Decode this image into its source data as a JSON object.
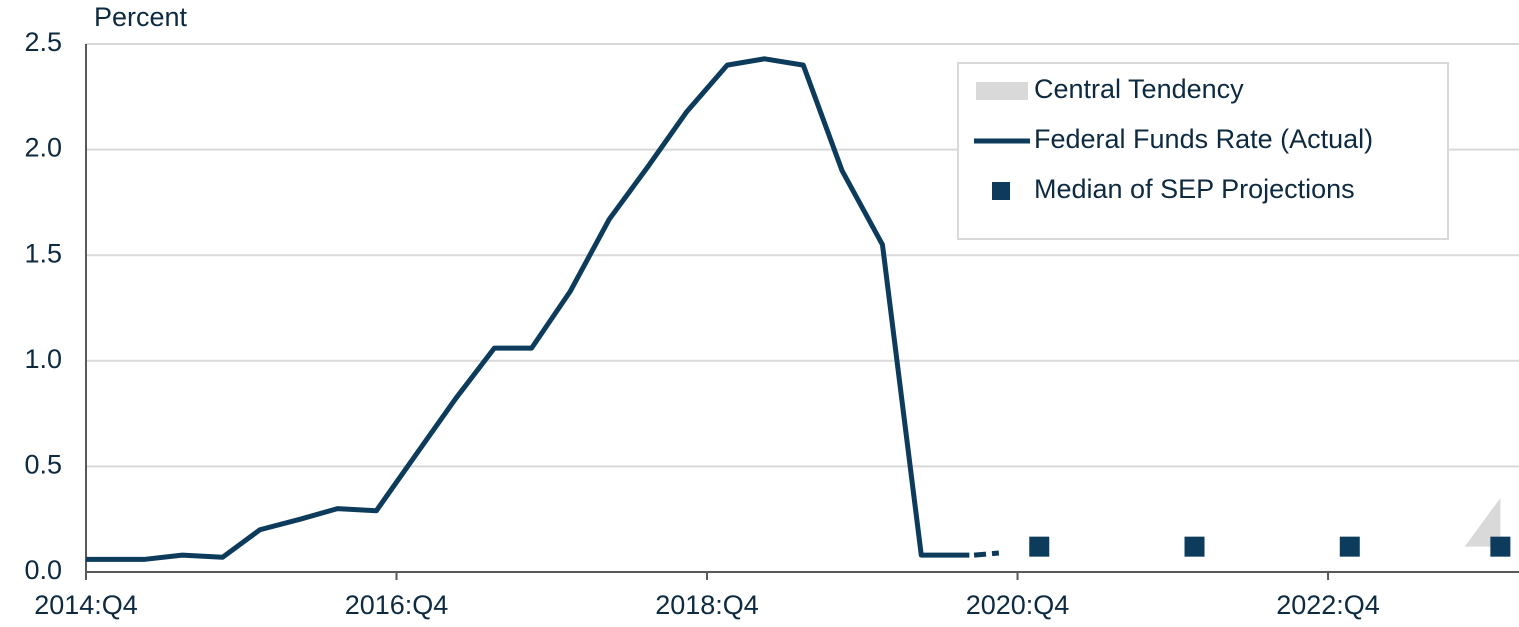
{
  "chart_data": {
    "type": "line",
    "y_label": "Percent",
    "xlim": [
      2014.75,
      2023.98
    ],
    "xticks": [
      {
        "value": 2014.75,
        "label": "2014:Q4"
      },
      {
        "value": 2016.75,
        "label": "2016:Q4"
      },
      {
        "value": 2018.75,
        "label": "2018:Q4"
      },
      {
        "value": 2020.75,
        "label": "2020:Q4"
      },
      {
        "value": 2022.75,
        "label": "2022:Q4"
      }
    ],
    "ylim": [
      0,
      2.5
    ],
    "yticks": [
      {
        "value": 0,
        "label": "0.0"
      },
      {
        "value": 0.5,
        "label": "0.5"
      },
      {
        "value": 1,
        "label": "1.0"
      },
      {
        "value": 1.5,
        "label": "1.5"
      },
      {
        "value": 2,
        "label": "2.0"
      },
      {
        "value": 2.5,
        "label": "2.5"
      }
    ],
    "grid": true,
    "legend": "upper right",
    "series": [
      {
        "name": "Central Tendency",
        "style": "band",
        "color": "#d9d9d9",
        "x": [
          2023.63,
          2023.86
        ],
        "low": [
          0.12,
          0.12
        ],
        "high": [
          0.12,
          0.35
        ]
      },
      {
        "name": "Federal Funds Rate (Actual)",
        "style": "line",
        "color": "#0d3b5c",
        "x": [
          2014.75,
          2015.13,
          2015.37,
          2015.63,
          2015.87,
          2016.13,
          2016.37,
          2016.62,
          2016.87,
          2017.13,
          2017.38,
          2017.62,
          2017.87,
          2018.12,
          2018.37,
          2018.62,
          2018.88,
          2019.12,
          2019.37,
          2019.62,
          2019.88,
          2020.13,
          2020.38,
          2020.44
        ],
        "values": [
          0.06,
          0.06,
          0.08,
          0.07,
          0.2,
          0.25,
          0.3,
          0.29,
          0.55,
          0.82,
          1.06,
          1.06,
          1.33,
          1.67,
          1.92,
          2.18,
          2.4,
          2.43,
          2.4,
          1.9,
          1.55,
          0.08,
          0.08,
          0.08
        ]
      },
      {
        "style": "dashed",
        "color": "#0d3b5c",
        "x": [
          2020.47,
          2020.63
        ],
        "values": [
          0.08,
          0.09
        ]
      },
      {
        "name": "Median of SEP Projections",
        "style": "markers",
        "color": "#0d3b5c",
        "x": [
          2020.89,
          2021.89,
          2022.89,
          2023.86
        ],
        "values": [
          0.12,
          0.12,
          0.12,
          0.12
        ]
      }
    ]
  }
}
